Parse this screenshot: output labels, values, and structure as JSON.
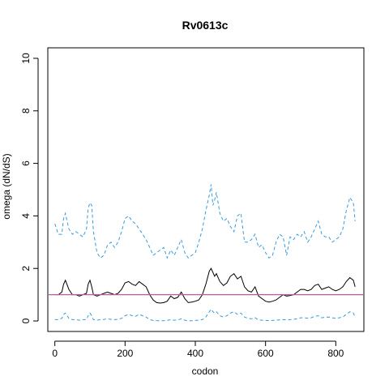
{
  "chart_data": {
    "type": "line",
    "title": "Rv0613c",
    "xlabel": "codon",
    "ylabel": "omega (dN/dS)",
    "xlim": [
      -20,
      880
    ],
    "ylim": [
      -0.4,
      10.4
    ],
    "xticks": [
      "0",
      "200",
      "400",
      "600",
      "800"
    ],
    "xtick_values": [
      0,
      200,
      400,
      600,
      800
    ],
    "yticks": [
      "0",
      "2",
      "4",
      "6",
      "8",
      "10"
    ],
    "ytick_values": [
      0,
      2,
      4,
      6,
      8,
      10
    ],
    "reference_line": {
      "y": 1,
      "color": "#c05aa0"
    },
    "grid": false,
    "legend": "none",
    "series": [
      {
        "style": "dashed",
        "color": "#3a9ad9",
        "x": [
          0,
          10,
          20,
          25,
          30,
          40,
          50,
          60,
          70,
          80,
          90,
          95,
          100,
          105,
          110,
          120,
          130,
          140,
          150,
          160,
          170,
          180,
          190,
          200,
          210,
          220,
          230,
          240,
          250,
          260,
          270,
          280,
          290,
          300,
          310,
          320,
          330,
          340,
          350,
          360,
          370,
          380,
          390,
          400,
          410,
          420,
          430,
          440,
          445,
          450,
          455,
          460,
          470,
          480,
          490,
          500,
          510,
          520,
          530,
          540,
          550,
          560,
          570,
          580,
          590,
          600,
          610,
          620,
          630,
          640,
          650,
          660,
          670,
          680,
          690,
          700,
          710,
          720,
          730,
          740,
          750,
          760,
          770,
          780,
          790,
          800,
          810,
          820,
          830,
          840,
          850,
          855
        ],
        "y": [
          3.7,
          3.3,
          3.3,
          3.9,
          4.1,
          3.5,
          3.3,
          3.4,
          3.3,
          3.2,
          3.5,
          4.3,
          4.5,
          4.4,
          3.4,
          2.6,
          2.4,
          2.5,
          2.9,
          3.0,
          2.8,
          3.0,
          3.4,
          3.9,
          4.0,
          3.8,
          3.7,
          3.5,
          3.3,
          3.1,
          2.8,
          2.5,
          2.6,
          2.7,
          2.8,
          2.4,
          2.7,
          2.5,
          2.8,
          3.1,
          2.6,
          2.4,
          2.5,
          2.6,
          3.0,
          3.5,
          4.2,
          4.8,
          5.2,
          4.4,
          4.6,
          4.9,
          4.1,
          3.8,
          3.9,
          3.6,
          3.4,
          4.0,
          4.1,
          3.0,
          3.0,
          3.1,
          3.3,
          2.8,
          2.9,
          2.6,
          2.4,
          2.5,
          3.0,
          3.3,
          3.2,
          2.5,
          3.2,
          3.1,
          3.3,
          3.2,
          3.4,
          3.0,
          3.2,
          3.5,
          3.8,
          3.3,
          3.2,
          3.2,
          3.0,
          3.1,
          3.2,
          3.5,
          4.2,
          4.7,
          4.5,
          3.8
        ]
      },
      {
        "style": "solid",
        "color": "#000000",
        "x": [
          0,
          10,
          20,
          25,
          30,
          40,
          50,
          60,
          70,
          80,
          90,
          95,
          100,
          105,
          110,
          120,
          130,
          140,
          150,
          160,
          170,
          180,
          190,
          200,
          210,
          220,
          230,
          240,
          250,
          260,
          270,
          280,
          290,
          300,
          310,
          320,
          330,
          340,
          350,
          360,
          370,
          380,
          390,
          400,
          410,
          420,
          430,
          440,
          445,
          450,
          455,
          460,
          470,
          480,
          490,
          500,
          510,
          520,
          530,
          540,
          550,
          560,
          570,
          580,
          590,
          600,
          610,
          620,
          630,
          640,
          650,
          660,
          670,
          680,
          690,
          700,
          710,
          720,
          730,
          740,
          750,
          760,
          770,
          780,
          790,
          800,
          810,
          820,
          830,
          840,
          850,
          855
        ],
        "y": [
          1.0,
          1.0,
          1.1,
          1.4,
          1.55,
          1.2,
          1.0,
          1.0,
          0.95,
          1.0,
          1.05,
          1.4,
          1.55,
          1.3,
          1.0,
          0.95,
          1.0,
          1.05,
          1.1,
          1.05,
          1.0,
          1.05,
          1.2,
          1.45,
          1.5,
          1.4,
          1.35,
          1.5,
          1.4,
          1.3,
          1.0,
          0.8,
          0.7,
          0.68,
          0.7,
          0.75,
          0.95,
          0.85,
          0.9,
          1.1,
          0.85,
          0.7,
          0.72,
          0.75,
          0.8,
          1.0,
          1.4,
          1.9,
          2.0,
          1.85,
          1.7,
          1.8,
          1.5,
          1.35,
          1.45,
          1.7,
          1.8,
          1.6,
          1.7,
          1.3,
          1.15,
          1.1,
          1.3,
          0.95,
          0.85,
          0.75,
          0.72,
          0.75,
          0.8,
          0.9,
          1.0,
          0.95,
          0.97,
          1.0,
          1.1,
          1.2,
          1.2,
          1.15,
          1.2,
          1.35,
          1.4,
          1.2,
          1.25,
          1.3,
          1.2,
          1.15,
          1.2,
          1.3,
          1.5,
          1.65,
          1.55,
          1.3
        ]
      },
      {
        "style": "dashed",
        "color": "#3a9ad9",
        "x": [
          0,
          10,
          20,
          25,
          30,
          40,
          50,
          60,
          70,
          80,
          90,
          95,
          100,
          105,
          110,
          120,
          130,
          140,
          150,
          160,
          170,
          180,
          190,
          200,
          210,
          220,
          230,
          240,
          250,
          260,
          270,
          280,
          290,
          300,
          310,
          320,
          330,
          340,
          350,
          360,
          370,
          380,
          390,
          400,
          410,
          420,
          430,
          440,
          445,
          450,
          455,
          460,
          470,
          480,
          490,
          500,
          510,
          520,
          530,
          540,
          550,
          560,
          570,
          580,
          590,
          600,
          610,
          620,
          630,
          640,
          650,
          660,
          670,
          680,
          690,
          700,
          710,
          720,
          730,
          740,
          750,
          760,
          770,
          780,
          790,
          800,
          810,
          820,
          830,
          840,
          850,
          855
        ],
        "y": [
          0.05,
          0.05,
          0.1,
          0.25,
          0.3,
          0.1,
          0.05,
          0.05,
          0.03,
          0.05,
          0.05,
          0.2,
          0.3,
          0.2,
          0.05,
          0.03,
          0.05,
          0.06,
          0.08,
          0.06,
          0.05,
          0.06,
          0.1,
          0.2,
          0.25,
          0.2,
          0.18,
          0.25,
          0.2,
          0.15,
          0.05,
          0.02,
          0.01,
          0.01,
          0.01,
          0.02,
          0.05,
          0.03,
          0.04,
          0.08,
          0.03,
          0.01,
          0.01,
          0.02,
          0.03,
          0.05,
          0.15,
          0.35,
          0.45,
          0.35,
          0.3,
          0.35,
          0.2,
          0.15,
          0.2,
          0.3,
          0.35,
          0.25,
          0.3,
          0.15,
          0.1,
          0.08,
          0.12,
          0.04,
          0.03,
          0.02,
          0.01,
          0.02,
          0.03,
          0.04,
          0.05,
          0.04,
          0.05,
          0.06,
          0.08,
          0.12,
          0.12,
          0.1,
          0.12,
          0.18,
          0.2,
          0.12,
          0.14,
          0.15,
          0.12,
          0.1,
          0.12,
          0.15,
          0.25,
          0.35,
          0.3,
          0.15
        ]
      }
    ]
  }
}
